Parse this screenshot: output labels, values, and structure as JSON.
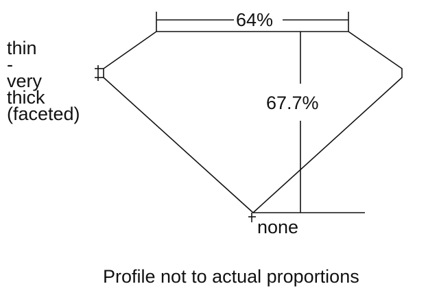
{
  "labels": {
    "table_width": "64%",
    "total_depth": "67.7%",
    "girdle": [
      "thin",
      "-",
      "very",
      "thick",
      "(faceted)"
    ],
    "culet": "none",
    "caption": "Profile not to actual proportions"
  },
  "colors": {
    "line": "#111111",
    "background": "#ffffff"
  }
}
